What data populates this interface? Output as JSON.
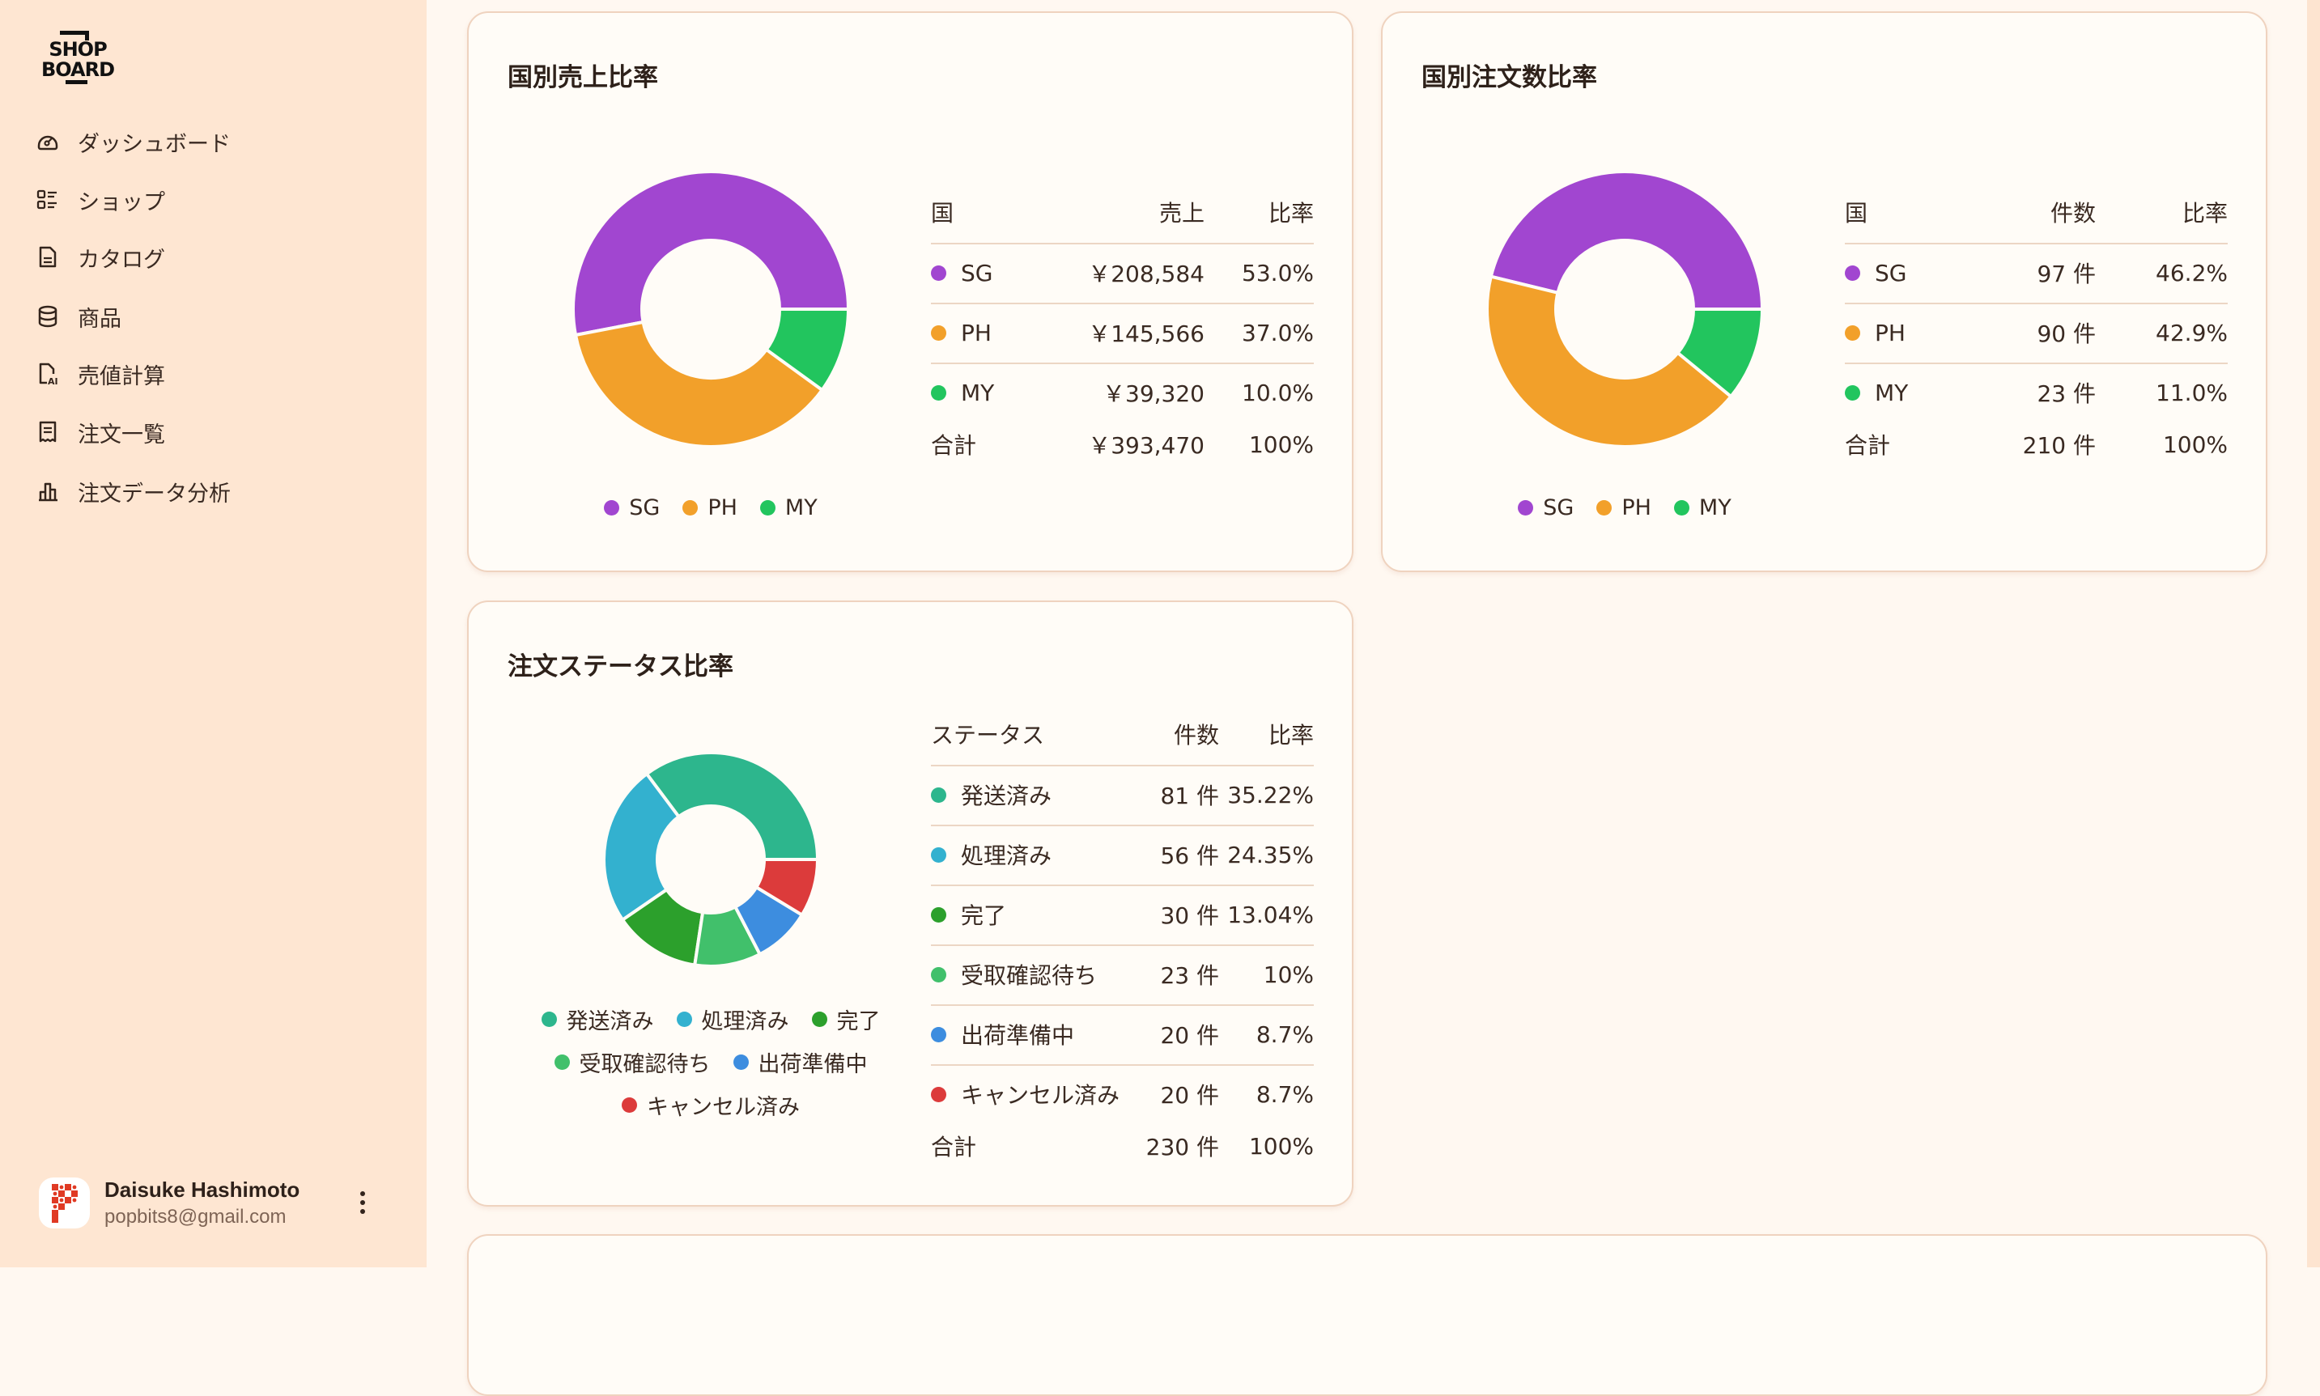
{
  "sidebar": {
    "logo_text": "SHOP BOARD",
    "items": [
      {
        "label": "ダッシュボード",
        "icon": "gauge-icon"
      },
      {
        "label": "ショップ",
        "icon": "list-icon"
      },
      {
        "label": "カタログ",
        "icon": "document-icon"
      },
      {
        "label": "商品",
        "icon": "database-icon"
      },
      {
        "label": "売値計算",
        "icon": "ai-file-icon"
      },
      {
        "label": "注文一覧",
        "icon": "receipt-icon"
      },
      {
        "label": "注文データ分析",
        "icon": "bar-chart-icon"
      }
    ],
    "user": {
      "name": "Daisuke Hashimoto",
      "email": "popbits8@gmail.com"
    }
  },
  "colors": {
    "SG": "#a146d0",
    "PH": "#f2a02a",
    "MY": "#22c55e",
    "shipped": "#2db68d",
    "processed": "#33b1cf",
    "completed": "#2ca02c",
    "awaiting": "#41c06b",
    "preparing": "#3d8ddf",
    "cancelled": "#dc3b3b"
  },
  "cards": {
    "sales": {
      "title": "国別売上比率",
      "headers": {
        "label": "国",
        "value": "売上",
        "ratio": "比率"
      },
      "rows": [
        {
          "label": "SG",
          "value": "￥208,584",
          "ratio": "53.0%",
          "amount": 208584,
          "color": "#a146d0"
        },
        {
          "label": "PH",
          "value": "￥145,566",
          "ratio": "37.0%",
          "amount": 145566,
          "color": "#f2a02a"
        },
        {
          "label": "MY",
          "value": "￥39,320",
          "ratio": "10.0%",
          "amount": 39320,
          "color": "#22c55e"
        }
      ],
      "total": {
        "label": "合計",
        "value": "￥393,470",
        "ratio": "100%"
      }
    },
    "orders": {
      "title": "国別注文数比率",
      "headers": {
        "label": "国",
        "value": "件数",
        "ratio": "比率"
      },
      "rows": [
        {
          "label": "SG",
          "value": "97 件",
          "ratio": "46.2%",
          "amount": 97,
          "color": "#a146d0"
        },
        {
          "label": "PH",
          "value": "90 件",
          "ratio": "42.9%",
          "amount": 90,
          "color": "#f2a02a"
        },
        {
          "label": "MY",
          "value": "23 件",
          "ratio": "11.0%",
          "amount": 23,
          "color": "#22c55e"
        }
      ],
      "total": {
        "label": "合計",
        "value": "210 件",
        "ratio": "100%"
      }
    },
    "status": {
      "title": "注文ステータス比率",
      "headers": {
        "label": "ステータス",
        "value": "件数",
        "ratio": "比率"
      },
      "rows": [
        {
          "label": "発送済み",
          "value": "81 件",
          "ratio": "35.22%",
          "amount": 81,
          "color": "#2db68d"
        },
        {
          "label": "処理済み",
          "value": "56 件",
          "ratio": "24.35%",
          "amount": 56,
          "color": "#33b1cf"
        },
        {
          "label": "完了",
          "value": "30 件",
          "ratio": "13.04%",
          "amount": 30,
          "color": "#2ca02c"
        },
        {
          "label": "受取確認待ち",
          "value": "23 件",
          "ratio": "10%",
          "amount": 23,
          "color": "#41c06b"
        },
        {
          "label": "出荷準備中",
          "value": "20 件",
          "ratio": "8.7%",
          "amount": 20,
          "color": "#3d8ddf"
        },
        {
          "label": "キャンセル済み",
          "value": "20 件",
          "ratio": "8.7%",
          "amount": 20,
          "color": "#dc3b3b"
        }
      ],
      "total": {
        "label": "合計",
        "value": "230 件",
        "ratio": "100%"
      }
    }
  }
}
